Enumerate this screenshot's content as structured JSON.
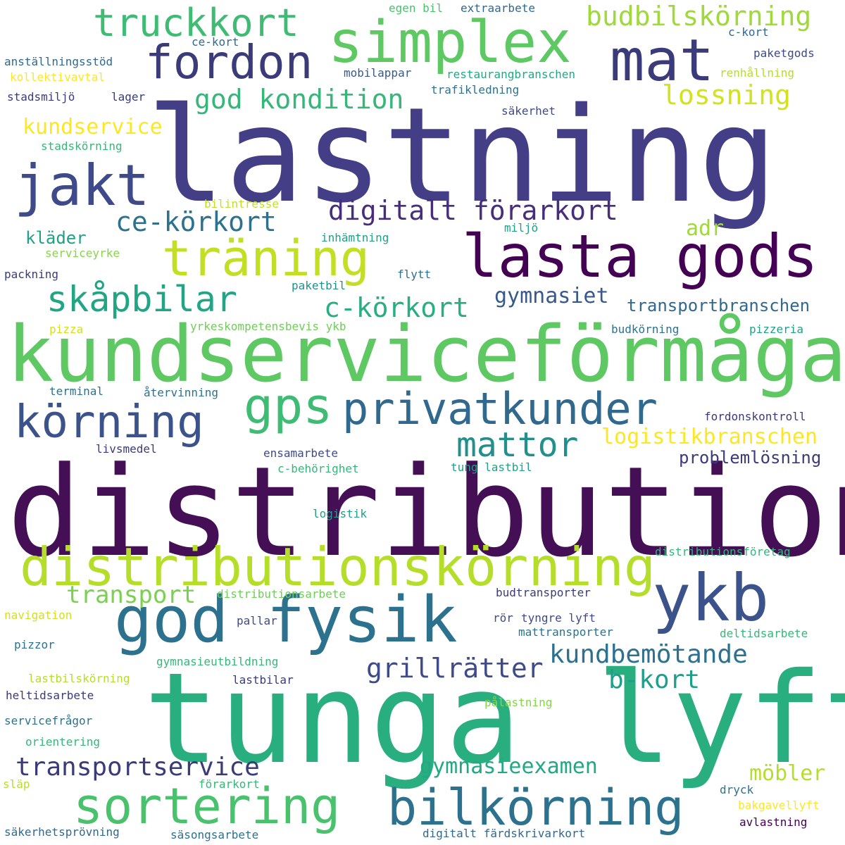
{
  "words": [
    {
      "text": "lastning",
      "color": "#433e85"
    },
    {
      "text": "distribution",
      "color": "#440f55"
    },
    {
      "text": "tunga lyft",
      "color": "#29af7f"
    },
    {
      "text": "kundserviceförmåga",
      "color": "#5ec962"
    },
    {
      "text": "lasta gods",
      "color": "#440154"
    },
    {
      "text": "distributionskörning",
      "color": "#b5de2b"
    },
    {
      "text": "god fysik",
      "color": "#2c728e"
    },
    {
      "text": "simplex",
      "color": "#5ec962"
    },
    {
      "text": "ykb",
      "color": "#3b528b"
    },
    {
      "text": "mat",
      "color": "#3b3b7a"
    },
    {
      "text": "jakt",
      "color": "#3e4a89"
    },
    {
      "text": "fordon",
      "color": "#3b3b7a"
    },
    {
      "text": "truckkort",
      "color": "#3fbc73"
    },
    {
      "text": "gps",
      "color": "#3fbc73"
    },
    {
      "text": "privatkunder",
      "color": "#31688e"
    },
    {
      "text": "körning",
      "color": "#3b528b"
    },
    {
      "text": "träning",
      "color": "#c2df23"
    },
    {
      "text": "sortering",
      "color": "#4ac16d"
    },
    {
      "text": "bilkörning",
      "color": "#2c728e"
    },
    {
      "text": "skåpbilar",
      "color": "#21a585"
    },
    {
      "text": "mattor",
      "color": "#21908d"
    },
    {
      "text": "digitalt förarkort",
      "color": "#472d7b"
    },
    {
      "text": "budbilskörning",
      "color": "#a0da39"
    },
    {
      "text": "god kondition",
      "color": "#35b779"
    },
    {
      "text": "lossning",
      "color": "#d2e21b"
    },
    {
      "text": "c-körkort",
      "color": "#28ae80"
    },
    {
      "text": "ce-körkort",
      "color": "#2c728e"
    },
    {
      "text": "transportservice",
      "color": "#3b3b7a"
    },
    {
      "text": "kundservice",
      "color": "#fde725"
    },
    {
      "text": "grillrätter",
      "color": "#3e4a89"
    },
    {
      "text": "kundbemötande",
      "color": "#2c728e"
    },
    {
      "text": "logistikbranschen",
      "color": "#fde725"
    },
    {
      "text": "transport",
      "color": "#7ad151"
    },
    {
      "text": "gymnasieexamen",
      "color": "#22a884"
    },
    {
      "text": "b-kort",
      "color": "#1f9e89"
    },
    {
      "text": "möbler",
      "color": "#b5de2b"
    },
    {
      "text": "problemlösning",
      "color": "#3b3b7a"
    },
    {
      "text": "transportbranschen",
      "color": "#31688e"
    },
    {
      "text": "gymnasiet",
      "color": "#38598c"
    },
    {
      "text": "kläder",
      "color": "#1fa187"
    },
    {
      "text": "adr",
      "color": "#a0da39"
    },
    {
      "text": "yrkeskompetensbevis ykb",
      "color": "#6ece58"
    },
    {
      "text": "egen bil",
      "color": "#4ac16d"
    },
    {
      "text": "extraarbete",
      "color": "#31688e"
    },
    {
      "text": "c-kort",
      "color": "#31688e"
    },
    {
      "text": "ce-kort",
      "color": "#31688e"
    },
    {
      "text": "paketgods",
      "color": "#3e4a89"
    },
    {
      "text": "anställningsstöd",
      "color": "#31688e"
    },
    {
      "text": "kollektivavtal",
      "color": "#fde725"
    },
    {
      "text": "mobilappar",
      "color": "#38598c"
    },
    {
      "text": "restaurangbranschen",
      "color": "#22a884"
    },
    {
      "text": "renhållning",
      "color": "#b5de2b"
    },
    {
      "text": "stadsmiljö",
      "color": "#3b3b7a"
    },
    {
      "text": "lager",
      "color": "#3b3b7a"
    },
    {
      "text": "trafikledning",
      "color": "#2c728e"
    },
    {
      "text": "säkerhet",
      "color": "#3e4a89"
    },
    {
      "text": "stadskörning",
      "color": "#35b779"
    },
    {
      "text": "bilintresse",
      "color": "#c2df23"
    },
    {
      "text": "miljö",
      "color": "#1fa187"
    },
    {
      "text": "inhämtning",
      "color": "#1fa187"
    },
    {
      "text": "serviceyrke",
      "color": "#86d549"
    },
    {
      "text": "packning",
      "color": "#3b3b7a"
    },
    {
      "text": "flytt",
      "color": "#2c728e"
    },
    {
      "text": "paketbil",
      "color": "#21908d"
    },
    {
      "text": "pizza",
      "color": "#d2e21b"
    },
    {
      "text": "budkörning",
      "color": "#2c728e"
    },
    {
      "text": "pizzeria",
      "color": "#1fa187"
    },
    {
      "text": "terminal",
      "color": "#2c728e"
    },
    {
      "text": "återvinning",
      "color": "#2c728e"
    },
    {
      "text": "fordonskontroll",
      "color": "#3b3b7a"
    },
    {
      "text": "livsmedel",
      "color": "#3b3b7a"
    },
    {
      "text": "ensamarbete",
      "color": "#3e4a89"
    },
    {
      "text": "c-behörighet",
      "color": "#35b779"
    },
    {
      "text": "tung lastbil",
      "color": "#1fa187"
    },
    {
      "text": "logistik",
      "color": "#1fa187"
    },
    {
      "text": "distributionsföretag",
      "color": "#35b779"
    },
    {
      "text": "distributionsarbete",
      "color": "#6ece58"
    },
    {
      "text": "budtransporter",
      "color": "#3b3b7a"
    },
    {
      "text": "navigation",
      "color": "#d2e21b"
    },
    {
      "text": "pallar",
      "color": "#3e4a89"
    },
    {
      "text": "rör",
      "color": "#3e4a89"
    },
    {
      "text": "tyngre lyft",
      "color": "#3e4a89"
    },
    {
      "text": "mattransporter",
      "color": "#2c728e"
    },
    {
      "text": "deltidsarbete",
      "color": "#35b779"
    },
    {
      "text": "pizzor",
      "color": "#2c728e"
    },
    {
      "text": "gymnasieutbildning",
      "color": "#35b779"
    },
    {
      "text": "lastbilskörning",
      "color": "#b5de2b"
    },
    {
      "text": "lastbilar",
      "color": "#3b3b7a"
    },
    {
      "text": "heltidsarbete",
      "color": "#3b3b7a"
    },
    {
      "text": "pålastning",
      "color": "#86d549"
    },
    {
      "text": "servicefrågor",
      "color": "#2c728e"
    },
    {
      "text": "orientering",
      "color": "#35b779"
    },
    {
      "text": "släp",
      "color": "#b5de2b"
    },
    {
      "text": "förarkort",
      "color": "#35b779"
    },
    {
      "text": "dryck",
      "color": "#2c728e"
    },
    {
      "text": "bakgavellyft",
      "color": "#fde725"
    },
    {
      "text": "avlastning",
      "color": "#440154"
    },
    {
      "text": "säkerhetsprövning",
      "color": "#31688e"
    },
    {
      "text": "säsongsarbete",
      "color": "#2c728e"
    },
    {
      "text": "digitalt färdskrivarkort",
      "color": "#31688e"
    }
  ]
}
